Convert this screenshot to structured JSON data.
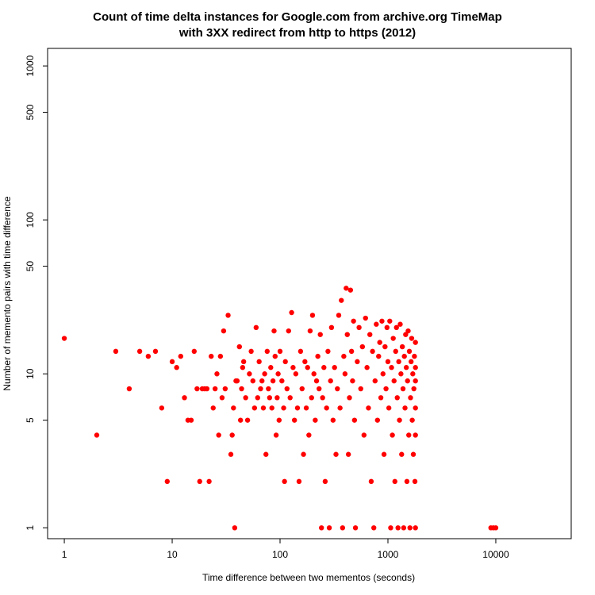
{
  "chart_data": {
    "type": "scatter",
    "title": [
      "Count of time delta instances for Google.com from archive.org TimeMap",
      "with 3XX redirect from http to https (2012)"
    ],
    "xlabel": "Time difference between two mementos (seconds)",
    "ylabel": "Number of memento pairs with time difference",
    "xscale": "log",
    "yscale": "log",
    "xlim": [
      0.7,
      50000
    ],
    "ylim": [
      0.85,
      1300
    ],
    "x_ticks": [
      1,
      10,
      100,
      1000,
      10000
    ],
    "x_tick_labels": [
      "1",
      "10",
      "100",
      "1000",
      "10000"
    ],
    "y_ticks": [
      1,
      5,
      10,
      50,
      100,
      500,
      1000
    ],
    "y_tick_labels": [
      "1",
      "5",
      "10",
      "50",
      "100",
      "500",
      "1000"
    ],
    "grid": false,
    "point_color": "#ff0000",
    "points": [
      [
        1,
        17
      ],
      [
        2,
        4
      ],
      [
        3,
        14
      ],
      [
        4,
        8
      ],
      [
        5,
        14
      ],
      [
        6,
        13
      ],
      [
        7,
        14
      ],
      [
        8,
        6
      ],
      [
        9,
        2
      ],
      [
        10,
        12
      ],
      [
        11,
        11
      ],
      [
        12,
        13
      ],
      [
        13,
        7
      ],
      [
        14,
        5
      ],
      [
        15,
        5
      ],
      [
        16,
        14
      ],
      [
        17,
        8
      ],
      [
        18,
        2
      ],
      [
        19,
        8
      ],
      [
        20,
        8
      ],
      [
        21,
        8
      ],
      [
        22,
        2
      ],
      [
        23,
        13
      ],
      [
        24,
        6
      ],
      [
        25,
        8
      ],
      [
        26,
        10
      ],
      [
        27,
        4
      ],
      [
        28,
        13
      ],
      [
        29,
        7
      ],
      [
        30,
        19
      ],
      [
        31,
        8
      ],
      [
        33,
        24
      ],
      [
        35,
        3
      ],
      [
        36,
        4
      ],
      [
        37,
        6
      ],
      [
        38,
        1
      ],
      [
        39,
        9
      ],
      [
        40,
        9
      ],
      [
        42,
        15
      ],
      [
        43,
        5
      ],
      [
        44,
        8
      ],
      [
        45,
        11
      ],
      [
        46,
        12
      ],
      [
        48,
        7
      ],
      [
        50,
        5
      ],
      [
        52,
        10
      ],
      [
        54,
        14
      ],
      [
        56,
        9
      ],
      [
        58,
        6
      ],
      [
        60,
        20
      ],
      [
        62,
        7
      ],
      [
        64,
        12
      ],
      [
        66,
        8
      ],
      [
        68,
        9
      ],
      [
        70,
        6
      ],
      [
        72,
        10
      ],
      [
        74,
        3
      ],
      [
        76,
        14
      ],
      [
        78,
        8
      ],
      [
        80,
        7
      ],
      [
        82,
        11
      ],
      [
        84,
        6
      ],
      [
        86,
        9
      ],
      [
        88,
        19
      ],
      [
        90,
        13
      ],
      [
        92,
        4
      ],
      [
        94,
        7
      ],
      [
        96,
        10
      ],
      [
        98,
        5
      ],
      [
        100,
        14
      ],
      [
        104,
        9
      ],
      [
        108,
        6
      ],
      [
        110,
        2
      ],
      [
        112,
        12
      ],
      [
        116,
        8
      ],
      [
        120,
        19
      ],
      [
        124,
        7
      ],
      [
        128,
        25
      ],
      [
        132,
        11
      ],
      [
        136,
        5
      ],
      [
        140,
        10
      ],
      [
        145,
        6
      ],
      [
        150,
        2
      ],
      [
        155,
        14
      ],
      [
        160,
        8
      ],
      [
        165,
        3
      ],
      [
        170,
        12
      ],
      [
        175,
        6
      ],
      [
        180,
        11
      ],
      [
        185,
        4
      ],
      [
        190,
        19
      ],
      [
        196,
        7
      ],
      [
        200,
        24
      ],
      [
        206,
        10
      ],
      [
        212,
        5
      ],
      [
        218,
        9
      ],
      [
        224,
        13
      ],
      [
        230,
        8
      ],
      [
        236,
        18
      ],
      [
        242,
        1
      ],
      [
        248,
        7
      ],
      [
        255,
        11
      ],
      [
        262,
        2
      ],
      [
        270,
        6
      ],
      [
        278,
        14
      ],
      [
        286,
        1
      ],
      [
        294,
        9
      ],
      [
        300,
        20
      ],
      [
        310,
        5
      ],
      [
        320,
        11
      ],
      [
        330,
        3
      ],
      [
        340,
        8
      ],
      [
        350,
        24
      ],
      [
        360,
        6
      ],
      [
        370,
        30
      ],
      [
        380,
        1
      ],
      [
        390,
        13
      ],
      [
        400,
        10
      ],
      [
        410,
        36
      ],
      [
        420,
        18
      ],
      [
        430,
        3
      ],
      [
        440,
        7
      ],
      [
        450,
        35
      ],
      [
        460,
        14
      ],
      [
        470,
        9
      ],
      [
        480,
        22
      ],
      [
        490,
        5
      ],
      [
        500,
        1
      ],
      [
        520,
        12
      ],
      [
        540,
        20
      ],
      [
        560,
        8
      ],
      [
        580,
        15
      ],
      [
        600,
        4
      ],
      [
        620,
        23
      ],
      [
        640,
        11
      ],
      [
        660,
        6
      ],
      [
        680,
        18
      ],
      [
        700,
        2
      ],
      [
        720,
        14
      ],
      [
        740,
        1
      ],
      [
        760,
        9
      ],
      [
        780,
        21
      ],
      [
        800,
        5
      ],
      [
        820,
        13
      ],
      [
        840,
        16
      ],
      [
        860,
        7
      ],
      [
        880,
        22
      ],
      [
        900,
        10
      ],
      [
        920,
        3
      ],
      [
        940,
        15
      ],
      [
        960,
        8
      ],
      [
        980,
        20
      ],
      [
        1000,
        12
      ],
      [
        1020,
        6
      ],
      [
        1040,
        22
      ],
      [
        1060,
        1
      ],
      [
        1080,
        11
      ],
      [
        1100,
        4
      ],
      [
        1120,
        17
      ],
      [
        1140,
        9
      ],
      [
        1160,
        2
      ],
      [
        1180,
        14
      ],
      [
        1200,
        20
      ],
      [
        1220,
        7
      ],
      [
        1240,
        1
      ],
      [
        1260,
        12
      ],
      [
        1280,
        5
      ],
      [
        1300,
        21
      ],
      [
        1320,
        10
      ],
      [
        1340,
        3
      ],
      [
        1360,
        15
      ],
      [
        1380,
        8
      ],
      [
        1400,
        1
      ],
      [
        1420,
        13
      ],
      [
        1440,
        6
      ],
      [
        1460,
        18
      ],
      [
        1480,
        11
      ],
      [
        1500,
        2
      ],
      [
        1520,
        9
      ],
      [
        1540,
        19
      ],
      [
        1560,
        4
      ],
      [
        1580,
        14
      ],
      [
        1600,
        1
      ],
      [
        1620,
        7
      ],
      [
        1640,
        12
      ],
      [
        1660,
        17
      ],
      [
        1680,
        5
      ],
      [
        1700,
        10
      ],
      [
        1720,
        3
      ],
      [
        1740,
        8
      ],
      [
        1760,
        13
      ],
      [
        1780,
        2
      ],
      [
        1800,
        6
      ],
      [
        1800,
        1
      ],
      [
        1800,
        4
      ],
      [
        1800,
        9
      ],
      [
        1800,
        11
      ],
      [
        1800,
        16
      ],
      [
        9000,
        1
      ],
      [
        9500,
        1
      ],
      [
        10000,
        1
      ]
    ]
  }
}
